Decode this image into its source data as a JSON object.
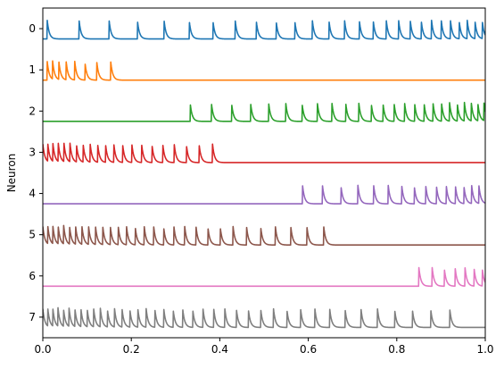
{
  "chart_data": {
    "type": "line",
    "title": "",
    "xlabel": "",
    "ylabel": "Neuron",
    "xlim": [
      0.0,
      1.0
    ],
    "ylim": [
      7.5,
      -0.5
    ],
    "grid": false,
    "legend": "none",
    "x_ticks": [
      0.0,
      0.2,
      0.4,
      0.6,
      0.8,
      1.0
    ],
    "x_tick_labels": [
      "0.0",
      "0.2",
      "0.4",
      "0.6",
      "0.8",
      "1.0"
    ],
    "y_ticks": [
      0,
      1,
      2,
      3,
      4,
      5,
      6,
      7
    ],
    "y_tick_labels": [
      "0",
      "1",
      "2",
      "3",
      "4",
      "5",
      "6",
      "7"
    ],
    "spike_height_units": 0.45,
    "series": [
      {
        "neuron": 0,
        "color": "#1f77b4",
        "active": [
          0.01,
          1.0
        ],
        "first_isi": 0.072,
        "last_isi": 0.015
      },
      {
        "neuron": 1,
        "color": "#ff7f0e",
        "active": [
          0.01,
          0.17
        ],
        "first_isi": 0.012,
        "last_isi": 0.04
      },
      {
        "neuron": 2,
        "color": "#2ca02c",
        "active": [
          0.333,
          1.0
        ],
        "first_isi": 0.048,
        "last_isi": 0.013
      },
      {
        "neuron": 3,
        "color": "#d62728",
        "active": [
          0.0,
          0.4
        ],
        "first_isi": 0.011,
        "last_isi": 0.033
      },
      {
        "neuron": 4,
        "color": "#9467bd",
        "active": [
          0.587,
          1.0
        ],
        "first_isi": 0.045,
        "last_isi": 0.014
      },
      {
        "neuron": 5,
        "color": "#8c564b",
        "active": [
          0.0,
          0.64
        ],
        "first_isi": 0.011,
        "last_isi": 0.04
      },
      {
        "neuron": 6,
        "color": "#e377c2",
        "active": [
          0.85,
          1.0
        ],
        "first_isi": 0.03,
        "last_isi": 0.016
      },
      {
        "neuron": 7,
        "color": "#7f7f7f",
        "active": [
          0.0,
          0.93
        ],
        "first_isi": 0.011,
        "last_isi": 0.045
      }
    ]
  }
}
